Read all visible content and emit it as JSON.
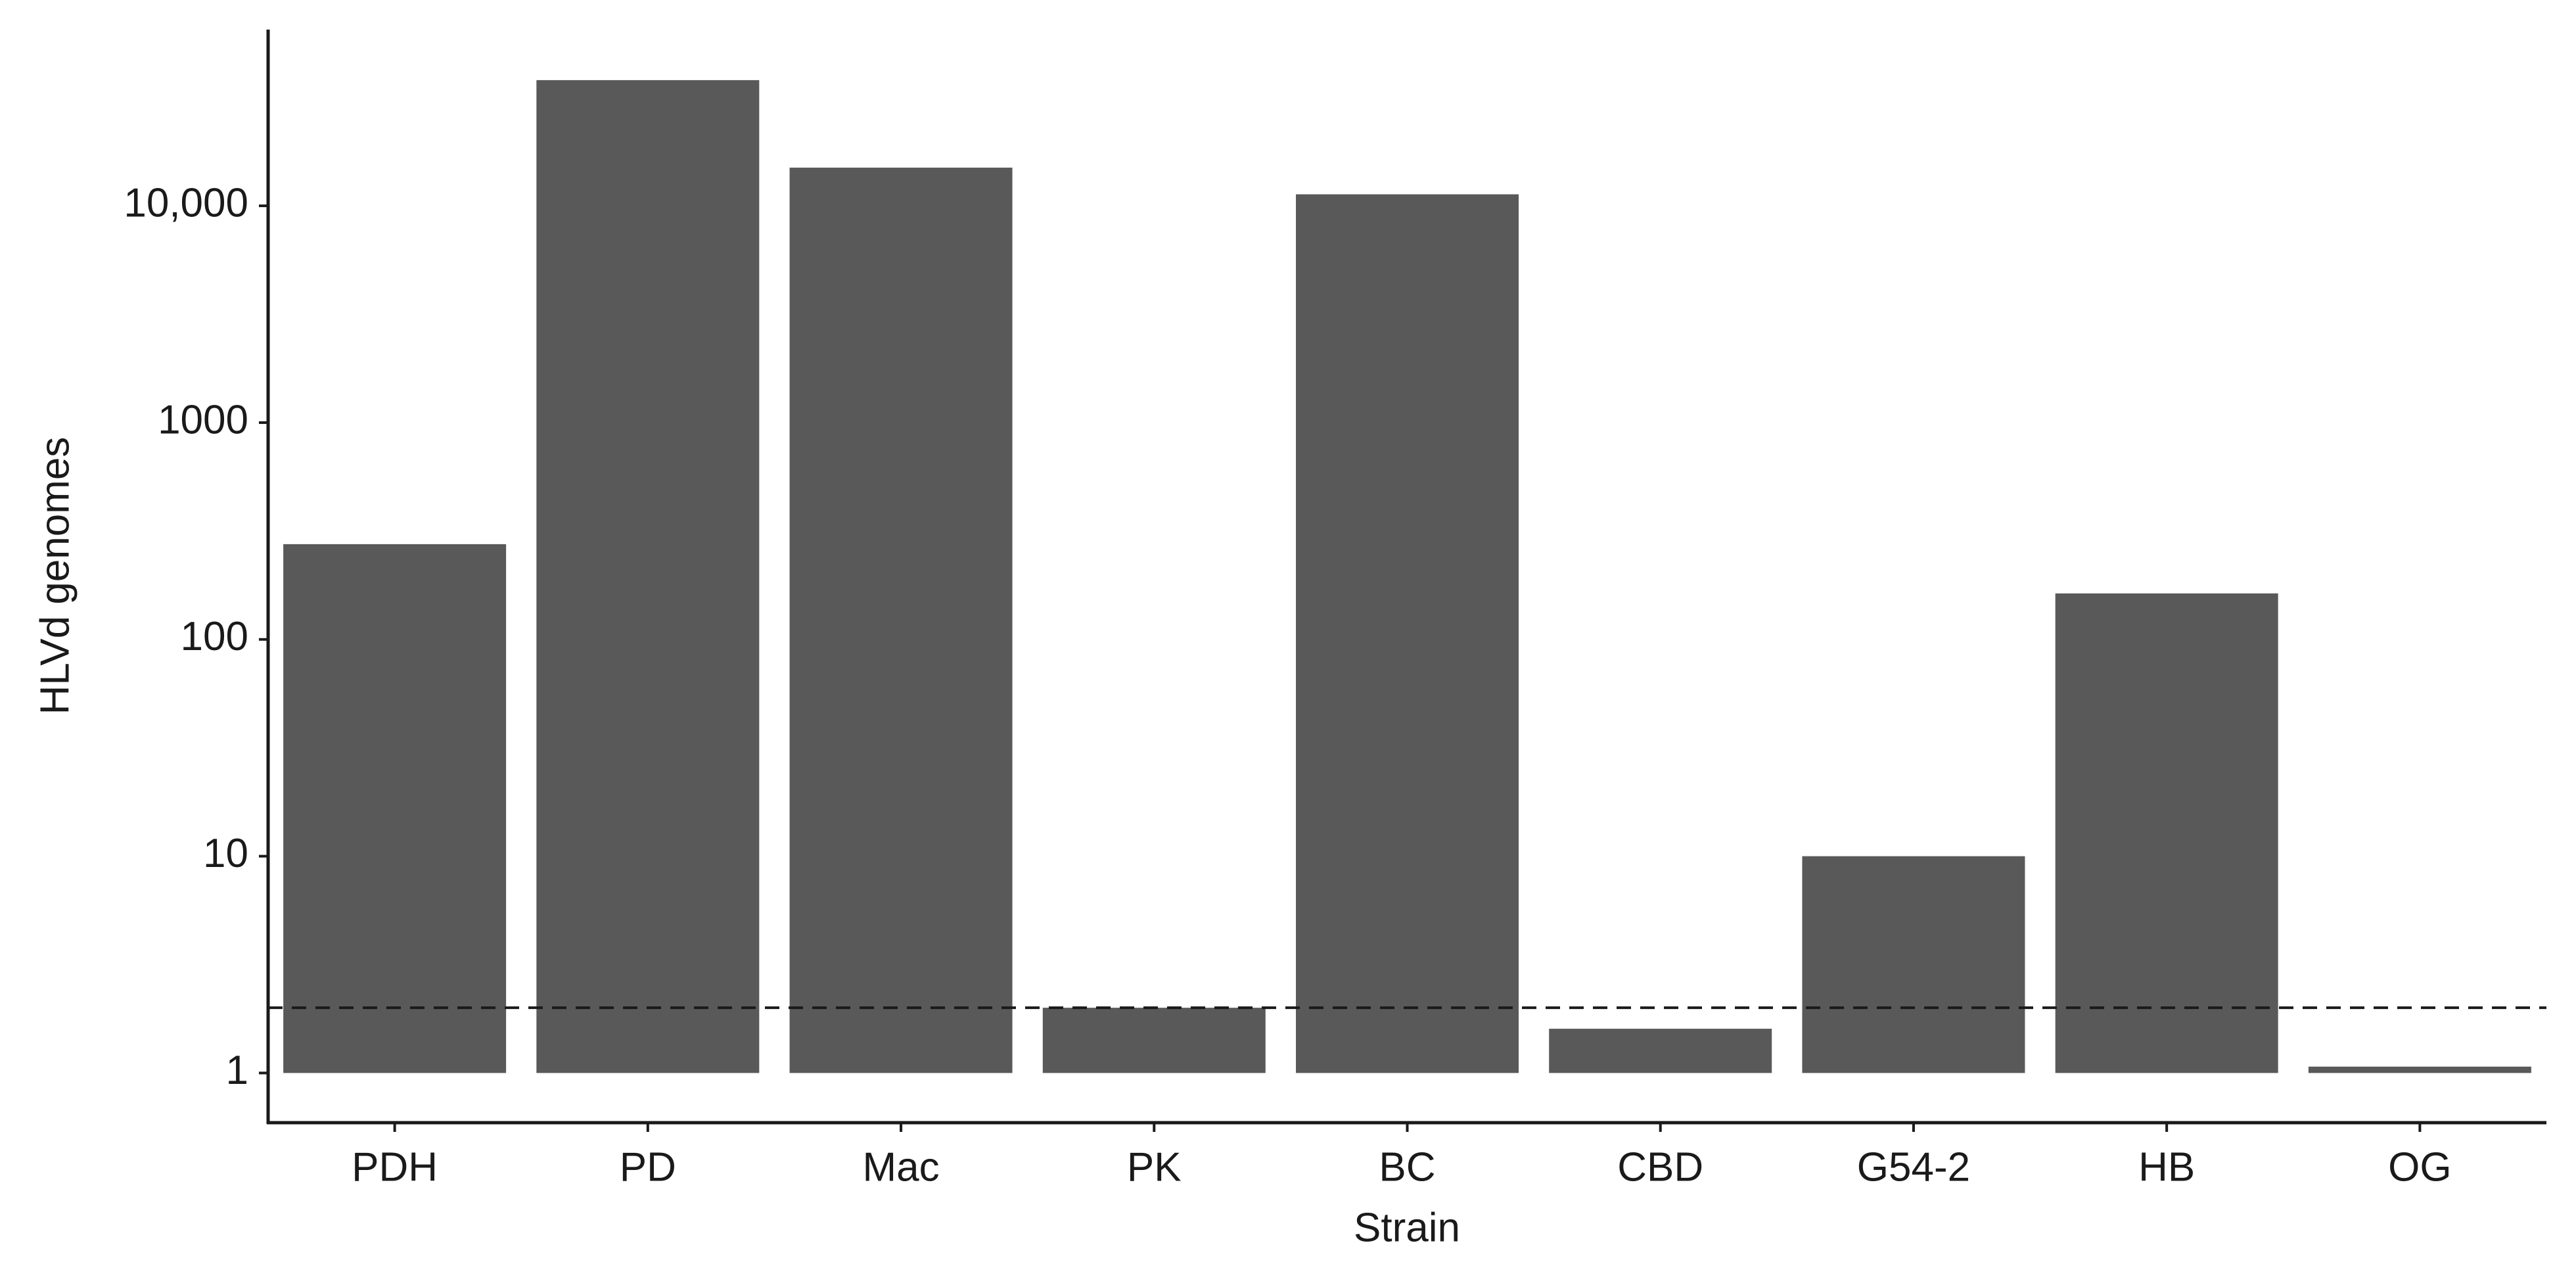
{
  "chart_data": {
    "type": "bar",
    "x_label": "Strain",
    "y_label": "HLVd genomes",
    "categories": [
      "PDH",
      "PD",
      "Mac",
      "PK",
      "BC",
      "CBD",
      "G54-2",
      "HB",
      "OG"
    ],
    "values": [
      275,
      38000,
      15000,
      2,
      11300,
      1.6,
      10,
      163,
      1.07
    ],
    "color": "#595959",
    "log_scale": true,
    "ylim": [
      0.59,
      65000
    ],
    "yticks": [
      1,
      10,
      100,
      1000,
      {
        "value": 10000,
        "label": "10,000"
      }
    ],
    "threshold": 2,
    "grid": false
  }
}
